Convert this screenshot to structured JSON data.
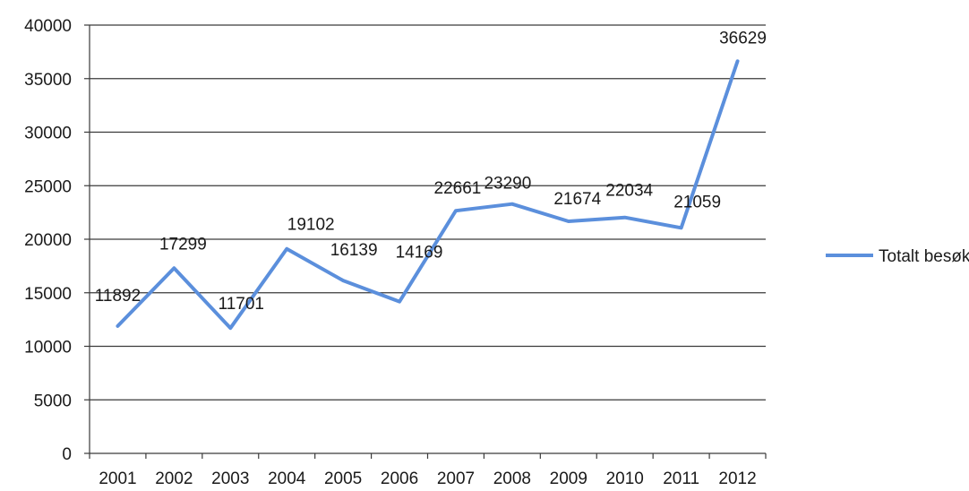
{
  "chart_data": {
    "type": "line",
    "categories": [
      "2001",
      "2002",
      "2003",
      "2004",
      "2005",
      "2006",
      "2007",
      "2008",
      "2009",
      "2010",
      "2011",
      "2012"
    ],
    "series": [
      {
        "name": "Totalt besøk",
        "values": [
          11892,
          17299,
          11701,
          19102,
          16139,
          14169,
          22661,
          23290,
          21674,
          22034,
          21059,
          36629
        ],
        "color": "#5b8fdc"
      }
    ],
    "data_labels": [
      "11892",
      "17299",
      "11701",
      "19102",
      "16139",
      "14169",
      "22661",
      "23290",
      "21674",
      "22034",
      "21059",
      "36629"
    ],
    "ylim": [
      0,
      40000
    ],
    "yticks": [
      0,
      5000,
      10000,
      15000,
      20000,
      25000,
      30000,
      35000,
      40000
    ],
    "grid": true,
    "legend_position": "right"
  }
}
